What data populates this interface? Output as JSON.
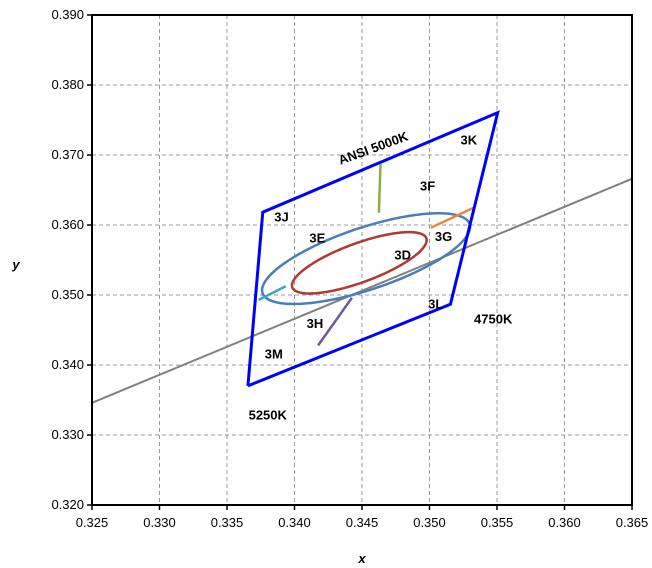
{
  "chart_data": {
    "type": "line",
    "title": "",
    "xlabel": "x",
    "ylabel": "y",
    "xlim": [
      0.325,
      0.365
    ],
    "ylim": [
      0.32,
      0.39
    ],
    "x_ticks": [
      0.325,
      0.33,
      0.335,
      0.34,
      0.345,
      0.35,
      0.355,
      0.36,
      0.365
    ],
    "y_ticks": [
      0.32,
      0.33,
      0.34,
      0.35,
      0.36,
      0.37,
      0.38,
      0.39
    ],
    "x_tick_labels": [
      "0.325",
      "0.330",
      "0.335",
      "0.340",
      "0.345",
      "0.350",
      "0.355",
      "0.360",
      "0.365"
    ],
    "y_tick_labels": [
      "0.320",
      "0.330",
      "0.340",
      "0.350",
      "0.360",
      "0.370",
      "0.380",
      "0.390"
    ],
    "grid": true,
    "colors": {
      "quadrangle": "#0000ff",
      "blackbody": "#808080",
      "outer_ellipse": "#4a7ebb",
      "inner_ellipse": "#b03a32",
      "seg_top": "#8fae3c",
      "seg_right": "#e8883a",
      "seg_bottom": "#6b5a9c",
      "seg_left": "#3aa6b8"
    },
    "series": [
      {
        "key": "quadrangle",
        "points": [
          [
            0.33655,
            0.33702
          ],
          [
            0.33765,
            0.36183
          ],
          [
            0.35505,
            0.37605
          ],
          [
            0.35155,
            0.34868
          ],
          [
            0.33655,
            0.33702
          ]
        ]
      },
      {
        "key": "blackbody",
        "points": [
          [
            0.325,
            0.3346
          ],
          [
            0.365,
            0.3666
          ]
        ]
      },
      {
        "key": "seg_top",
        "points": [
          [
            0.34637,
            0.3687
          ],
          [
            0.34625,
            0.36175
          ]
        ]
      },
      {
        "key": "seg_right",
        "points": [
          [
            0.3501,
            0.3596
          ],
          [
            0.35325,
            0.36245
          ]
        ]
      },
      {
        "key": "seg_bottom",
        "points": [
          [
            0.34425,
            0.3496
          ],
          [
            0.34175,
            0.3428
          ]
        ]
      },
      {
        "key": "seg_left",
        "points": [
          [
            0.33735,
            0.3493
          ],
          [
            0.33935,
            0.35125
          ]
        ]
      }
    ],
    "ellipses": [
      {
        "key": "outer_ellipse",
        "cx": 0.3453,
        "cy": 0.3552,
        "a": 0.0093,
        "b": 0.00385,
        "angle_deg": 38.0
      },
      {
        "key": "inner_ellipse",
        "cx": 0.3448,
        "cy": 0.3546,
        "a": 0.0062,
        "b": 0.00238,
        "angle_deg": 40.0
      }
    ],
    "annotations": [
      {
        "text": "ANSI 5000K",
        "x": 0.3434,
        "y": 0.3686,
        "rotate": -20
      },
      {
        "text": "3K",
        "x": 0.3523,
        "y": 0.3715
      },
      {
        "text": "3F",
        "x": 0.3493,
        "y": 0.3649
      },
      {
        "text": "3J",
        "x": 0.3385,
        "y": 0.3605
      },
      {
        "text": "3E",
        "x": 0.3411,
        "y": 0.3575
      },
      {
        "text": "3G",
        "x": 0.3504,
        "y": 0.3577
      },
      {
        "text": "3D",
        "x": 0.3474,
        "y": 0.3551
      },
      {
        "text": "3L",
        "x": 0.3499,
        "y": 0.3481
      },
      {
        "text": "4750K",
        "x": 0.3533,
        "y": 0.3459
      },
      {
        "text": "3H",
        "x": 0.3409,
        "y": 0.3453
      },
      {
        "text": "3M",
        "x": 0.3378,
        "y": 0.3409
      },
      {
        "text": "5250K",
        "x": 0.3366,
        "y": 0.3322
      }
    ]
  }
}
